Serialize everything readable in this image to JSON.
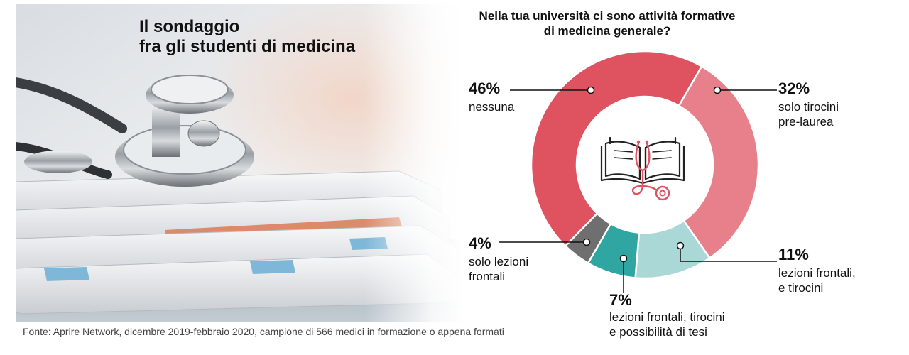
{
  "header": {
    "title_line1": "Il sondaggio",
    "title_line2": "fra gli studenti di medicina"
  },
  "chart_data": {
    "type": "pie",
    "title": "Nella tua università ci sono attività formative di medicina generale?",
    "title_lines": [
      "Nella tua università ci sono attività formative",
      "di medicina generale?"
    ],
    "slices": [
      {
        "value": 46,
        "display": "46%",
        "label_lines": [
          "nessuna"
        ],
        "color": "#df5360"
      },
      {
        "value": 32,
        "display": "32%",
        "label_lines": [
          "solo tirocini",
          "pre-laurea"
        ],
        "color": "#e7808a"
      },
      {
        "value": 11,
        "display": "11%",
        "label_lines": [
          "lezioni frontali,",
          "e tirocini"
        ],
        "color": "#a9d8d6"
      },
      {
        "value": 7,
        "display": "7%",
        "label_lines": [
          "lezioni frontali, tirocini",
          "e possibilità di tesi"
        ],
        "color": "#2fa6a1"
      },
      {
        "value": 4,
        "display": "4%",
        "label_lines": [
          "solo lezioni",
          "frontali"
        ],
        "color": "#6f6f6f"
      }
    ],
    "center_icon": "book-stethoscope-icon",
    "legend": "none"
  },
  "photo": {
    "icon": "stethoscope-on-papers-photo"
  },
  "footer": {
    "source": "Fonte: Aprire Network, dicembre 2019-febbraio 2020, campione di 566 medici in formazione o appena formati"
  }
}
